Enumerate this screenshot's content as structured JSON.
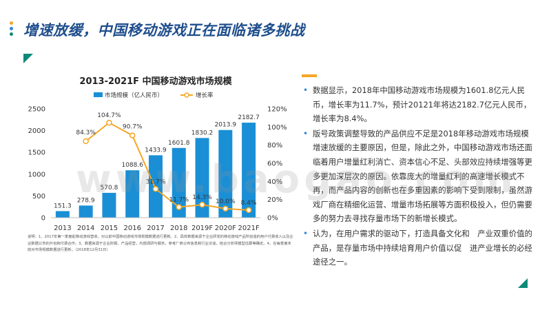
{
  "page": {
    "title": "增速放缓，中国移动游戏正在面临诸多挑战",
    "watermark": "www.baogao.com"
  },
  "colors": {
    "bar": "#1a8fd6",
    "line": "#f5a623",
    "title": "#1f4e8c",
    "accent_teal": "#0d8a7a",
    "dot_yellow": "#f5a623",
    "dot_blue": "#2e86de",
    "dot_teal": "#0d8a7a"
  },
  "chart_data": {
    "type": "bar",
    "title": "2013-2021F 中国移动游戏市场规模",
    "categories": [
      "2013",
      "2014",
      "2015",
      "2016",
      "2017",
      "2018",
      "2019F",
      "2020F",
      "2021F"
    ],
    "series": [
      {
        "name": "市场规模（亿人民币）",
        "type": "bar",
        "values": [
          151.3,
          278.9,
          570.8,
          1088.6,
          1433.9,
          1601.8,
          1830.2,
          2013.9,
          2182.7
        ],
        "labels": [
          "151.3",
          "278.9",
          "570.8",
          "1088.6",
          "1433.9",
          "1601.8",
          "1830.2",
          "2013.9",
          "2182.7"
        ]
      },
      {
        "name": "增长率",
        "type": "line",
        "axis": "right",
        "values": [
          84.3,
          104.7,
          90.7,
          31.7,
          11.7,
          14.3,
          10.0,
          8.4
        ],
        "x": [
          "2014",
          "2015",
          "2016",
          "2017",
          "2018",
          "2019F",
          "2020F",
          "2021F"
        ],
        "labels": [
          "84.3%",
          "104.7%",
          "90.7%",
          "31.7%",
          "11.7%",
          "14.3%",
          "10.0%",
          "8.4%"
        ]
      }
    ],
    "yticks_left": [
      "0",
      "500",
      "1000",
      "1500",
      "2000",
      "2500"
    ],
    "ylim_left": [
      0,
      2500
    ],
    "yticks_right": [
      "0%",
      "20%",
      "40%",
      "60%",
      "80%",
      "100%",
      "120%"
    ],
    "ylim_right": [
      0,
      120
    ],
    "legend_position": "top",
    "grid": false
  },
  "chart_note": "说明：1、2017年第一季度起移动游戏营收，对以前中国移动游戏市场规模数据进行更新。2、具体数据来源于企业研发的移动游戏产品所创造的用户付费收入以及企业数据公司的外包和付费合作。3、数据来源于企业财报、产品经营，内部调研与服务，参考厂商公布信息和行业访谈，结合分析师模型估算等确定。4、在每季度末前对市场规模数据进行更新。（2018年12月31日）",
  "bullets": [
    "数据显示，2018年中国移动游戏市场规模为1601.8亿元人民币，增长率为11.7%，预计20121年将达2182.7亿元人民币，增长率为8.4%。",
    "版号政策调整导致的产品供应不足是2018年移动游戏市场规模增速放缓的主要原因，但是，除此之外，中国移动游戏市场还面临着用户增量红利消亡、资本信心不足、头部效应持续增强等更多更加深层次的原因。依靠庞大的增量红利的高速增长模式不再，而产品内容的创新也在多重因素的影响下受到限制，虽然游戏厂商在精细化运营、增量市场拓展等方面积极投入，但仍需要多的努力去寻找存量市场下的新增长模式。",
    "认为，在用户需求的驱动下，打造具备文化和　产业双重价值的产品，是存量市场中持续培育用户价值以促　进产业增长的必经途径之一。"
  ]
}
